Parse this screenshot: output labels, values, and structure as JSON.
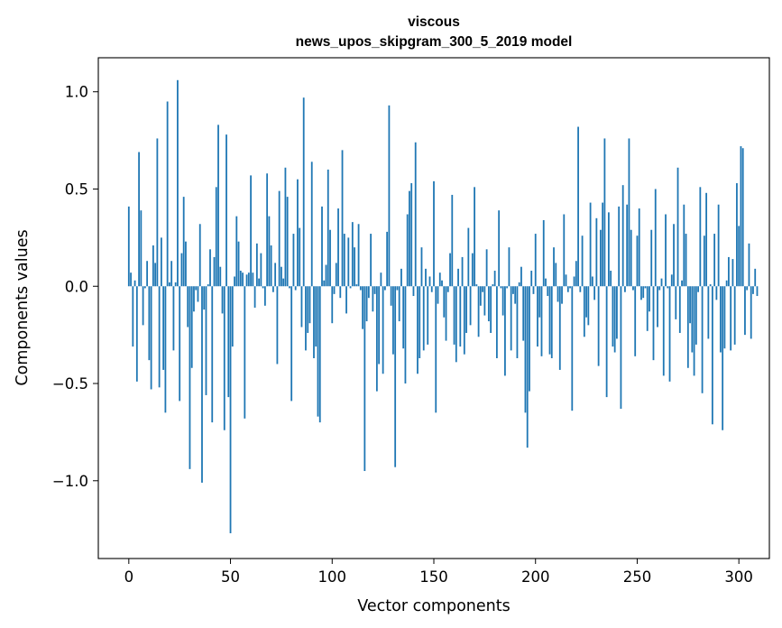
{
  "chart_data": {
    "type": "bar",
    "title": "viscous",
    "subtitle": "news_upos_skipgram_300_5_2019 model",
    "xlabel": "Vector components",
    "ylabel": "Components values",
    "xlim": [
      -15,
      315
    ],
    "ylim": [
      -1.4,
      1.175
    ],
    "xticks": [
      0,
      50,
      100,
      150,
      200,
      250,
      300
    ],
    "yticks": [
      -1.0,
      -0.5,
      0.0,
      0.5,
      1.0
    ],
    "xtick_labels": [
      "0",
      "50",
      "100",
      "150",
      "200",
      "250",
      "300"
    ],
    "ytick_labels": [
      "−1.0",
      "−0.5",
      "0.0",
      "0.5",
      "1.0"
    ],
    "bar_color": "#1f77b4",
    "values": [
      0.41,
      0.07,
      -0.31,
      0.03,
      -0.49,
      0.69,
      0.39,
      -0.2,
      -0.01,
      0.13,
      -0.38,
      -0.53,
      0.21,
      0.12,
      0.76,
      -0.52,
      0.25,
      -0.43,
      -0.65,
      0.95,
      0.02,
      0.13,
      -0.33,
      0.02,
      1.06,
      -0.59,
      0.17,
      0.46,
      0.23,
      -0.21,
      -0.94,
      -0.42,
      -0.13,
      -0.02,
      -0.08,
      0.32,
      -1.01,
      -0.12,
      -0.56,
      0.01,
      0.19,
      -0.7,
      0.15,
      0.51,
      0.83,
      0.1,
      -0.14,
      -0.74,
      0.78,
      -0.57,
      -1.27,
      -0.31,
      0.05,
      0.36,
      0.23,
      0.08,
      0.07,
      -0.68,
      0.06,
      0.07,
      0.57,
      0.07,
      -0.11,
      0.22,
      0.04,
      0.17,
      -0.01,
      -0.1,
      0.58,
      0.36,
      0.21,
      -0.03,
      0.12,
      -0.4,
      0.49,
      0.1,
      0.04,
      0.61,
      0.46,
      -0.01,
      -0.59,
      0.27,
      -0.02,
      0.55,
      0.3,
      -0.21,
      0.97,
      -0.33,
      -0.24,
      -0.19,
      0.64,
      -0.37,
      -0.31,
      -0.67,
      -0.7,
      0.41,
      0.03,
      0.11,
      0.6,
      0.29,
      -0.19,
      -0.04,
      0.12,
      0.4,
      -0.06,
      0.7,
      0.27,
      -0.14,
      0.25,
      -0.01,
      0.33,
      0.2,
      0.01,
      0.32,
      -0.02,
      -0.22,
      -0.95,
      -0.18,
      -0.06,
      0.27,
      -0.13,
      -0.04,
      -0.54,
      -0.4,
      0.07,
      -0.45,
      -0.02,
      0.28,
      0.93,
      -0.1,
      -0.35,
      -0.93,
      -0.02,
      -0.18,
      0.09,
      -0.32,
      -0.5,
      0.37,
      0.49,
      0.53,
      -0.05,
      0.74,
      -0.45,
      -0.37,
      0.2,
      -0.33,
      0.09,
      -0.3,
      0.05,
      -0.03,
      0.54,
      -0.65,
      -0.09,
      0.07,
      0.03,
      -0.16,
      -0.28,
      -0.03,
      0.17,
      0.47,
      -0.3,
      -0.39,
      0.09,
      -0.31,
      0.15,
      -0.35,
      -0.24,
      0.3,
      -0.2,
      0.17,
      0.51,
      0.01,
      -0.26,
      -0.1,
      -0.03,
      -0.15,
      0.19,
      -0.18,
      -0.24,
      0.01,
      0.08,
      -0.37,
      0.39,
      -0.01,
      -0.15,
      -0.46,
      -0.01,
      0.2,
      -0.33,
      -0.04,
      -0.09,
      -0.37,
      0.02,
      0.1,
      -0.28,
      -0.65,
      -0.83,
      -0.54,
      0.08,
      -0.04,
      0.27,
      -0.31,
      -0.16,
      -0.36,
      0.34,
      0.04,
      -0.05,
      -0.35,
      -0.37,
      0.2,
      0.12,
      -0.08,
      -0.43,
      -0.09,
      0.37,
      0.06,
      -0.03,
      -0.01,
      -0.64,
      0.05,
      0.13,
      0.82,
      -0.03,
      0.26,
      -0.26,
      -0.16,
      -0.2,
      0.43,
      0.05,
      -0.07,
      0.35,
      -0.41,
      0.29,
      0.43,
      0.76,
      -0.57,
      0.38,
      0.08,
      -0.31,
      -0.34,
      -0.27,
      0.41,
      -0.63,
      0.52,
      -0.03,
      0.42,
      0.76,
      0.29,
      -0.02,
      -0.36,
      0.26,
      0.4,
      -0.07,
      -0.06,
      -0.01,
      -0.23,
      -0.13,
      0.29,
      -0.38,
      0.5,
      -0.21,
      -0.02,
      0.04,
      -0.46,
      0.37,
      -0.01,
      -0.49,
      0.06,
      0.32,
      -0.17,
      0.61,
      -0.24,
      0.03,
      0.42,
      0.27,
      -0.42,
      -0.19,
      -0.34,
      -0.46,
      -0.3,
      -0.03,
      0.51,
      -0.55,
      0.26,
      0.48,
      -0.27,
      0.01,
      -0.71,
      0.27,
      -0.07,
      0.42,
      -0.34,
      -0.74,
      -0.32,
      0.03,
      0.15,
      -0.33,
      0.14,
      -0.3,
      0.53,
      0.31,
      0.72,
      0.71,
      -0.25,
      -0.02,
      0.22,
      -0.27,
      -0.04,
      0.09,
      -0.05
    ]
  }
}
